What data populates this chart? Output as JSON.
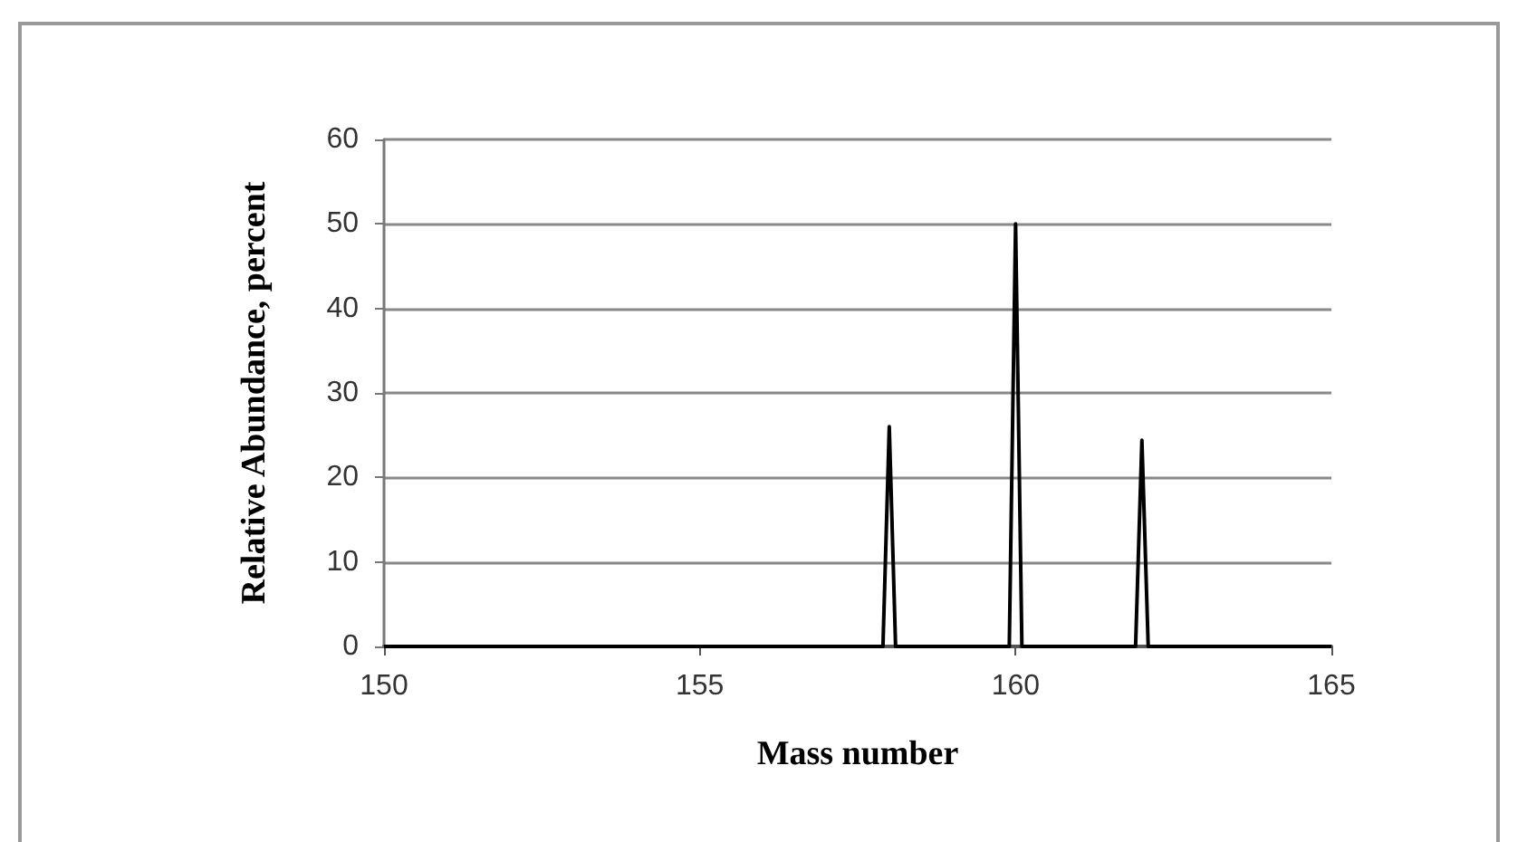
{
  "chart_data": {
    "type": "line",
    "xlabel": "Mass number",
    "ylabel": "Relative Abundance, percent",
    "x": [
      150,
      157.9,
      158,
      158.1,
      159.9,
      160,
      160.1,
      161.9,
      162,
      162.1,
      165
    ],
    "series": [
      {
        "color": "#000000",
        "values": [
          0,
          0,
          26,
          0,
          0,
          50,
          0,
          0,
          24.4,
          0,
          0
        ]
      }
    ],
    "xlim": [
      150,
      165
    ],
    "xticks": [
      150,
      155,
      160,
      165
    ],
    "ylim": [
      0,
      60
    ],
    "yticks": [
      0,
      10,
      20,
      30,
      40,
      50,
      60
    ],
    "grid": "y",
    "marker": "none",
    "line_style": "solid"
  }
}
